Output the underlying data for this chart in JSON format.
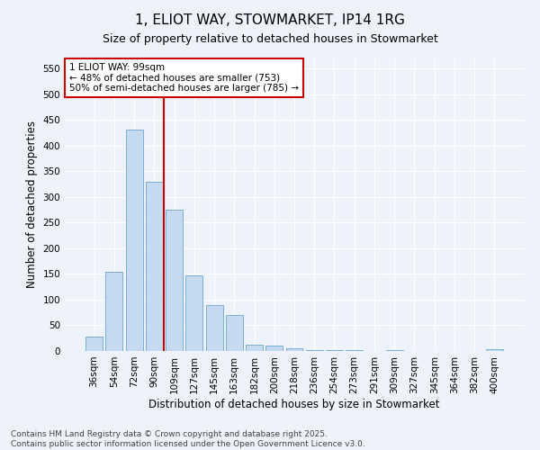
{
  "title": "1, ELIOT WAY, STOWMARKET, IP14 1RG",
  "subtitle": "Size of property relative to detached houses in Stowmarket",
  "xlabel": "Distribution of detached houses by size in Stowmarket",
  "ylabel": "Number of detached properties",
  "categories": [
    "36sqm",
    "54sqm",
    "72sqm",
    "90sqm",
    "109sqm",
    "127sqm",
    "145sqm",
    "163sqm",
    "182sqm",
    "200sqm",
    "218sqm",
    "236sqm",
    "254sqm",
    "273sqm",
    "291sqm",
    "309sqm",
    "327sqm",
    "345sqm",
    "364sqm",
    "382sqm",
    "400sqm"
  ],
  "values": [
    28,
    155,
    432,
    330,
    275,
    147,
    90,
    70,
    13,
    11,
    6,
    2,
    1,
    1,
    0,
    1,
    0,
    0,
    0,
    0,
    4
  ],
  "bar_color": "#c5d9f1",
  "bar_edge_color": "#7bafd4",
  "vline_color": "#cc0000",
  "annotation_text": "1 ELIOT WAY: 99sqm\n← 48% of detached houses are smaller (753)\n50% of semi-detached houses are larger (785) →",
  "annotation_box_color": "#ffffff",
  "annotation_box_edge": "#cc0000",
  "ylim": [
    0,
    570
  ],
  "yticks": [
    0,
    50,
    100,
    150,
    200,
    250,
    300,
    350,
    400,
    450,
    500,
    550
  ],
  "background_color": "#edf2fb",
  "grid_color": "#ffffff",
  "footer": "Contains HM Land Registry data © Crown copyright and database right 2025.\nContains public sector information licensed under the Open Government Licence v3.0.",
  "title_fontsize": 11,
  "subtitle_fontsize": 9,
  "axis_label_fontsize": 8.5,
  "tick_fontsize": 7.5,
  "annotation_fontsize": 7.5,
  "footer_fontsize": 6.5
}
